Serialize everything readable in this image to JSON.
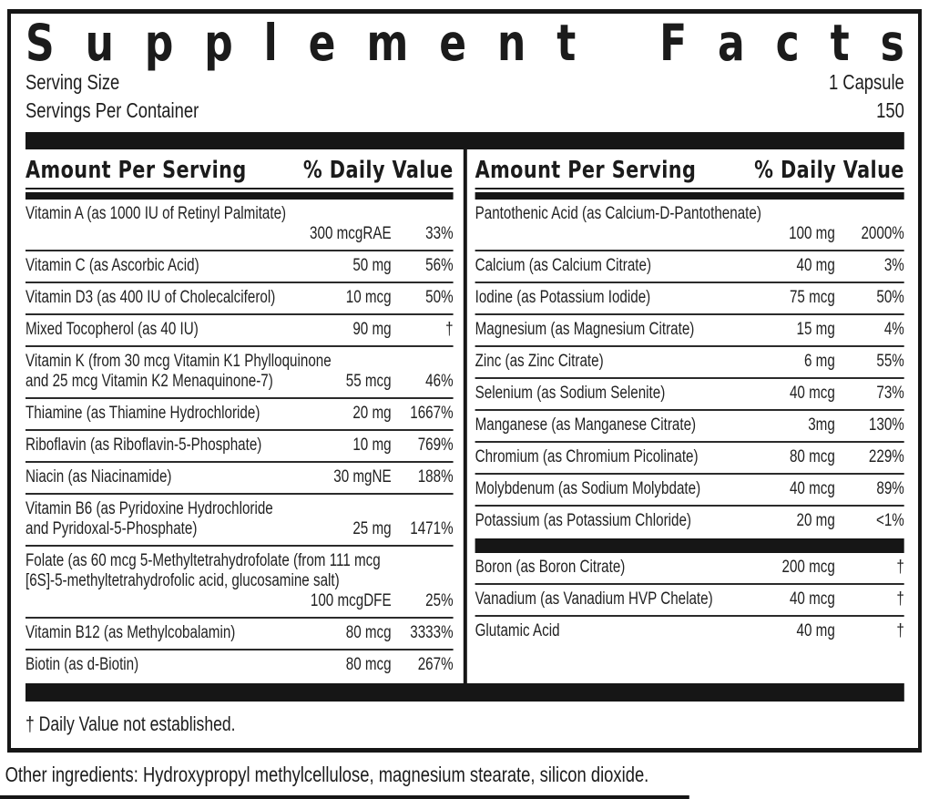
{
  "colors": {
    "ink": "#161616",
    "paper": "#ffffff"
  },
  "title": "Supplement Facts",
  "serving": {
    "size_label": "Serving Size",
    "size_value": "1 Capsule",
    "per_container_label": "Servings Per Container",
    "per_container_value": "150"
  },
  "columns": [
    {
      "header": {
        "amount": "Amount Per Serving",
        "daily_value": "% Daily Value"
      },
      "rows": [
        {
          "name_lines": [
            "Vitamin A (as 1000 IU of Retinyl Palmitate)"
          ],
          "amount": "300 mcgRAE",
          "percent": "33%",
          "value_below": true
        },
        {
          "name_lines": [
            "Vitamin C (as Ascorbic Acid)"
          ],
          "amount": "50 mg",
          "percent": "56%"
        },
        {
          "name_lines": [
            "Vitamin D3 (as 400 IU of Cholecalciferol)"
          ],
          "amount": "10 mcg",
          "percent": "50%"
        },
        {
          "name_lines": [
            "Mixed Tocopherol (as 40 IU)"
          ],
          "amount": "90 mg",
          "percent": "†"
        },
        {
          "name_lines": [
            "Vitamin K (from 30 mcg Vitamin K1 Phylloquinone",
            "and 25 mcg Vitamin K2 Menaquinone-7)"
          ],
          "amount": "55 mcg",
          "percent": "46%"
        },
        {
          "name_lines": [
            "Thiamine (as Thiamine Hydrochloride)"
          ],
          "amount": "20 mg",
          "percent": "1667%"
        },
        {
          "name_lines": [
            "Riboflavin (as Riboflavin-5-Phosphate)"
          ],
          "amount": "10 mg",
          "percent": "769%"
        },
        {
          "name_lines": [
            "Niacin (as Niacinamide)"
          ],
          "amount": "30 mgNE",
          "percent": "188%"
        },
        {
          "name_lines": [
            "Vitamin B6 (as Pyridoxine Hydrochloride",
            "and Pyridoxal-5-Phosphate)"
          ],
          "amount": "25 mg",
          "percent": "1471%"
        },
        {
          "name_lines": [
            "Folate (as 60 mcg 5-Methyltetrahydrofolate (from 111 mcg",
            "[6S]-5-methyltetrahydrofolic acid, glucosamine salt)"
          ],
          "amount": "100 mcgDFE",
          "percent": "25%",
          "value_below": true
        },
        {
          "name_lines": [
            "Vitamin B12 (as Methylcobalamin)"
          ],
          "amount": "80 mcg",
          "percent": "3333%"
        },
        {
          "name_lines": [
            "Biotin (as d-Biotin)"
          ],
          "amount": "80 mcg",
          "percent": "267%"
        }
      ]
    },
    {
      "header": {
        "amount": "Amount Per Serving",
        "daily_value": "% Daily Value"
      },
      "rows": [
        {
          "name_lines": [
            "Pantothenic Acid (as Calcium-D-Pantothenate)"
          ],
          "amount": "100 mg",
          "percent": "2000%",
          "value_below": true
        },
        {
          "name_lines": [
            "Calcium (as Calcium Citrate)"
          ],
          "amount": "40 mg",
          "percent": "3%"
        },
        {
          "name_lines": [
            "Iodine (as Potassium Iodide)"
          ],
          "amount": "75 mcg",
          "percent": "50%"
        },
        {
          "name_lines": [
            "Magnesium (as Magnesium Citrate)"
          ],
          "amount": "15 mg",
          "percent": "4%"
        },
        {
          "name_lines": [
            "Zinc (as Zinc Citrate)"
          ],
          "amount": "6 mg",
          "percent": "55%"
        },
        {
          "name_lines": [
            "Selenium (as Sodium Selenite)"
          ],
          "amount": "40 mcg",
          "percent": "73%"
        },
        {
          "name_lines": [
            "Manganese (as Manganese Citrate)"
          ],
          "amount": "3mg",
          "percent": "130%"
        },
        {
          "name_lines": [
            "Chromium (as Chromium Picolinate)"
          ],
          "amount": "80 mcg",
          "percent": "229%"
        },
        {
          "name_lines": [
            "Molybdenum (as Sodium Molybdate)"
          ],
          "amount": "40 mcg",
          "percent": "89%"
        },
        {
          "name_lines": [
            "Potassium (as Potassium Chloride)"
          ],
          "amount": "20 mg",
          "percent": "<1%"
        },
        {
          "divider": true
        },
        {
          "name_lines": [
            "Boron (as Boron Citrate)"
          ],
          "amount": "200 mcg",
          "percent": "†"
        },
        {
          "name_lines": [
            "Vanadium (as Vanadium HVP Chelate)"
          ],
          "amount": "40 mcg",
          "percent": "†"
        },
        {
          "name_lines": [
            "Glutamic Acid"
          ],
          "amount": "40 mg",
          "percent": "†"
        }
      ]
    }
  ],
  "footnote": "† Daily Value not established.",
  "other_ingredients": "Other ingredients: Hydroxypropyl methylcellulose, magnesium stearate, silicon dioxide."
}
